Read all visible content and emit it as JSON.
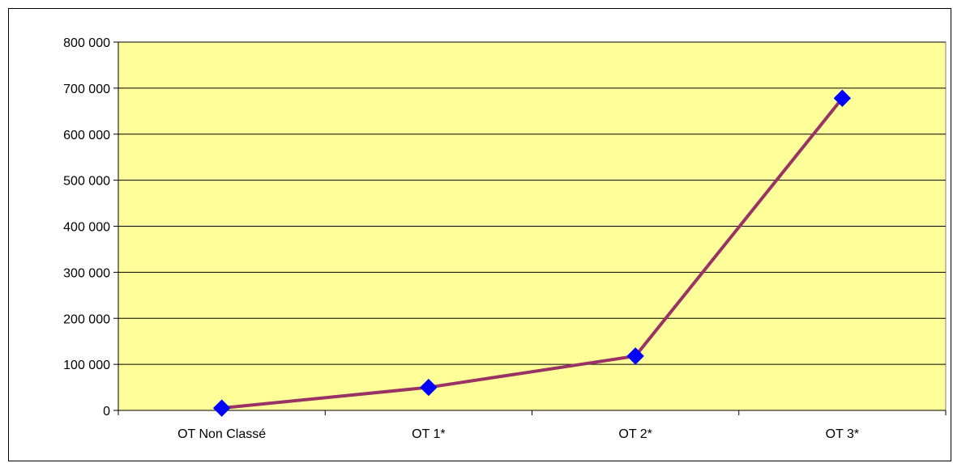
{
  "chart_data": {
    "type": "line",
    "categories": [
      "OT Non Classé",
      "OT 1*",
      "OT 2*",
      "OT 3*"
    ],
    "series": [
      {
        "values": [
          5000,
          50000,
          118000,
          678000
        ],
        "line_color": "#993366",
        "marker_color": "#0000ff",
        "marker": "diamond"
      }
    ],
    "ylim": [
      0,
      800000
    ],
    "y_ticks": [
      0,
      100000,
      200000,
      300000,
      400000,
      500000,
      600000,
      700000,
      800000
    ],
    "y_tick_labels": [
      "0",
      "100 000",
      "200 000",
      "300 000",
      "400 000",
      "500 000",
      "600 000",
      "700 000",
      "800 000"
    ],
    "title": "",
    "xlabel": "",
    "ylabel": "",
    "grid": true,
    "legend": "none",
    "plot_background": "#ffff99",
    "grid_color": "#000000"
  }
}
